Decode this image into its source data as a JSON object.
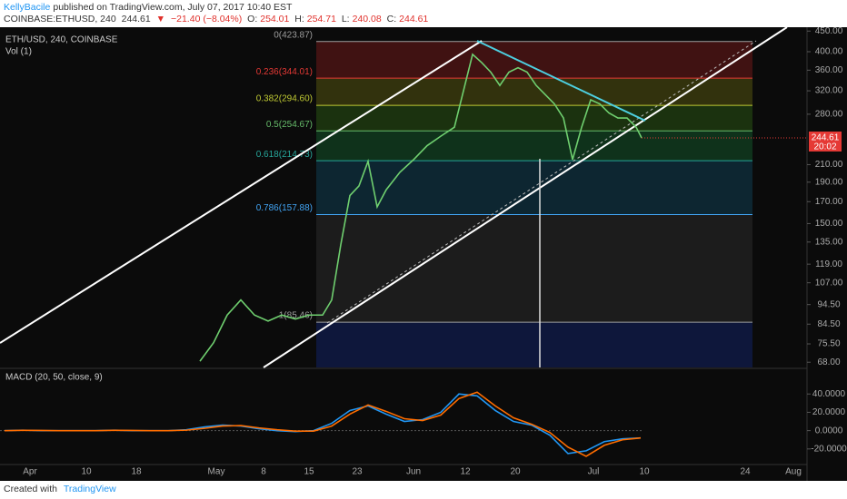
{
  "header": {
    "author": "KellyBacile",
    "published": "published on TradingView.com, July 07, 2017 10:40 EST"
  },
  "symbol_bar": {
    "symbol": "COINBASE:ETHUSD, 240",
    "last": "244.61",
    "arrow": "▼",
    "change": "−21.40 (−8.04%)",
    "open": {
      "label": "O:",
      "value": "254.01"
    },
    "high": {
      "label": "H:",
      "value": "254.71"
    },
    "low": {
      "label": "L:",
      "value": "240.08"
    },
    "close": {
      "label": "C:",
      "value": "244.61"
    }
  },
  "chart_data": [
    {
      "type": "line",
      "title": "ETH/USD, 240, COINBASE",
      "subtitle": "Vol (1)",
      "log_scale": true,
      "ylim": [
        66,
        460
      ],
      "yticks": [
        {
          "value": 450,
          "label": "450.00"
        },
        {
          "value": 400,
          "label": "400.00"
        },
        {
          "value": 360,
          "label": "360.00"
        },
        {
          "value": 320,
          "label": "320.00"
        },
        {
          "value": 280,
          "label": "280.00"
        },
        {
          "value": 210,
          "label": "210.00"
        },
        {
          "value": 190,
          "label": "190.00"
        },
        {
          "value": 170,
          "label": "170.00"
        },
        {
          "value": 150,
          "label": "150.00"
        },
        {
          "value": 135,
          "label": "135.00"
        },
        {
          "value": 119,
          "label": "119.00"
        },
        {
          "value": 107,
          "label": "107.00"
        },
        {
          "value": 94.5,
          "label": "94.50"
        },
        {
          "value": 84.5,
          "label": "84.50"
        },
        {
          "value": 75.5,
          "label": "75.50"
        },
        {
          "value": 68,
          "label": "68.00"
        }
      ],
      "x_labels": [
        "Apr",
        "10",
        "18",
        "May",
        "8",
        "15",
        "23",
        "Jun",
        "12",
        "20",
        "Jul",
        "10",
        "24",
        "Aug"
      ],
      "series": [
        {
          "color": "#6fcf6f",
          "values": [
            68.4,
            76,
            89,
            97,
            89,
            86,
            89,
            87,
            89,
            89,
            97,
            133,
            176,
            186,
            214,
            165,
            182,
            201,
            216,
            234,
            247,
            260,
            320,
            394,
            376,
            356,
            330,
            356,
            365,
            356,
            330,
            313,
            297,
            274,
            216,
            260,
            304,
            297,
            282,
            274,
            274,
            260,
            244.61
          ]
        }
      ],
      "fib_levels": [
        {
          "value": 423.87,
          "label": "0(423.87)",
          "color": "#9e9e9e"
        },
        {
          "value": 344.01,
          "label": "0.236(344.01)",
          "color": "#e53935"
        },
        {
          "value": 294.6,
          "label": "0.382(294.60)",
          "color": "#c0ca33"
        },
        {
          "value": 254.67,
          "label": "0.5(254.67)",
          "color": "#66bb6a"
        },
        {
          "value": 214.73,
          "label": "0.618(214.73)",
          "color": "#26a69a"
        },
        {
          "value": 157.88,
          "label": "0.786(157.88)",
          "color": "#42a5f5"
        },
        {
          "value": 85.46,
          "label": "1(85.46)",
          "color": "#9e9e9e"
        }
      ],
      "last_price": {
        "value": 244.61,
        "label": "244.61"
      },
      "countdown": "20:02"
    },
    {
      "type": "line",
      "title": "MACD (20, 50, close, 9)",
      "ylim": [
        -37,
        66
      ],
      "yticks": [
        {
          "value": 40,
          "label": "40.0000"
        },
        {
          "value": 20,
          "label": "20.0000"
        },
        {
          "value": 0,
          "label": "0.0000"
        },
        {
          "value": -20,
          "label": "-20.0000"
        }
      ],
      "series": [
        {
          "color": "#2196f3",
          "values": [
            0,
            0.5,
            0,
            0,
            0,
            0,
            0.5,
            0,
            0,
            0,
            1,
            4,
            6,
            5,
            2,
            0,
            -1,
            0,
            8,
            22,
            27,
            18,
            10,
            12,
            20,
            40,
            38,
            22,
            10,
            6,
            -5,
            -25,
            -22,
            -12,
            -9,
            -8
          ]
        },
        {
          "color": "#ff6d00",
          "values": [
            0,
            0.3,
            0.2,
            0,
            0,
            0,
            0.3,
            0.2,
            0,
            0,
            0.5,
            2.5,
            5,
            5.5,
            3,
            1,
            -0.5,
            -0.5,
            5,
            18,
            28,
            21,
            13,
            11,
            17,
            35,
            42,
            27,
            14,
            7,
            -2,
            -18,
            -28,
            -16,
            -10,
            -8
          ]
        }
      ]
    }
  ],
  "footer": {
    "created": "Created with",
    "brand": "TradingView"
  }
}
